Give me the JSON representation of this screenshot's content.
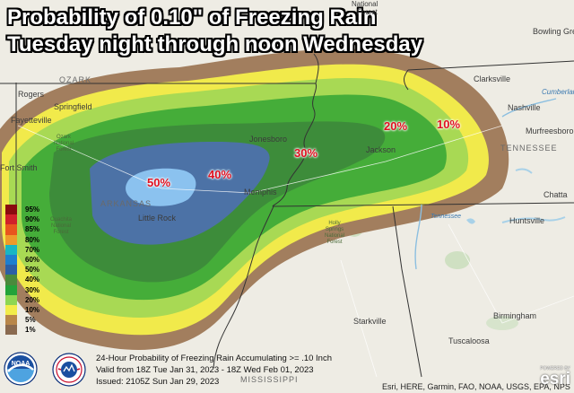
{
  "title": {
    "line1": "Probability of 0.10\" of Freezing Rain",
    "line2": "Tuesday night through noon Wednesday"
  },
  "contours": [
    "50%",
    "40%",
    "30%",
    "20%",
    "10%"
  ],
  "legend": [
    {
      "label": "95%",
      "color": "#8a0a10"
    },
    {
      "label": "90%",
      "color": "#d0202a"
    },
    {
      "label": "85%",
      "color": "#e8551e"
    },
    {
      "label": "80%",
      "color": "#ee9a2b"
    },
    {
      "label": "70%",
      "color": "#18b6c4"
    },
    {
      "label": "60%",
      "color": "#1f7fcf"
    },
    {
      "label": "50%",
      "color": "#2d5fa5"
    },
    {
      "label": "40%",
      "color": "#4a8a3c"
    },
    {
      "label": "30%",
      "color": "#23a33a"
    },
    {
      "label": "20%",
      "color": "#8ed653"
    },
    {
      "label": "10%",
      "color": "#f2ec4a"
    },
    {
      "label": "5%",
      "color": "#b8864a"
    },
    {
      "label": "1%",
      "color": "#8a6a50"
    }
  ],
  "cities": {
    "nashville": "Nashville",
    "murfreesboro": "Murfreesboro",
    "clarksville": "Clarksville",
    "bowling_green": "Bowling Green",
    "jonesboro": "Jonesboro",
    "jackson": "Jackson",
    "memphis": "Memphis",
    "little_rock": "Little Rock",
    "fort_smith": "Fort Smith",
    "fayetteville": "Fayetteville",
    "springfield": "Springfield",
    "rogers": "Rogers",
    "huntsville": "Huntsville",
    "birmingham": "Birmingham",
    "tuscaloosa": "Tuscaloosa",
    "starkville": "Starkville",
    "chattanooga": "Chatta",
    "national": "National",
    "forest": "Forest",
    "arkansas_state": "ARKANSAS",
    "tennessee_state": "TENNESSEE",
    "mississippi_state": "MISSISSIPPI",
    "ozark": "OZARK",
    "cumberland": "Cumberland",
    "tennessee_river": "Tennessee"
  },
  "forests": {
    "ozark": "Ozark\nNational\nForest",
    "ouachita": "Ouachita\nNational\nForest",
    "holly_springs": "Holly\nSprings\nNational\nForest"
  },
  "info": {
    "line1": "24-Hour Probability of Freezing Rain Accumulating >= .10 Inch",
    "line2": "Valid from 18Z Tue Jan 31, 2023 - 18Z Wed Feb 01, 2023",
    "line3": "Issued: 2105Z Sun Jan 29, 2023"
  },
  "attribution": "Esri, HERE, Garmin, FAO, NOAA, USGS, EPA, NPS",
  "logos": {
    "noaa": "NOAA",
    "esri": "esri",
    "esri_powered": "POWERED BY"
  }
}
